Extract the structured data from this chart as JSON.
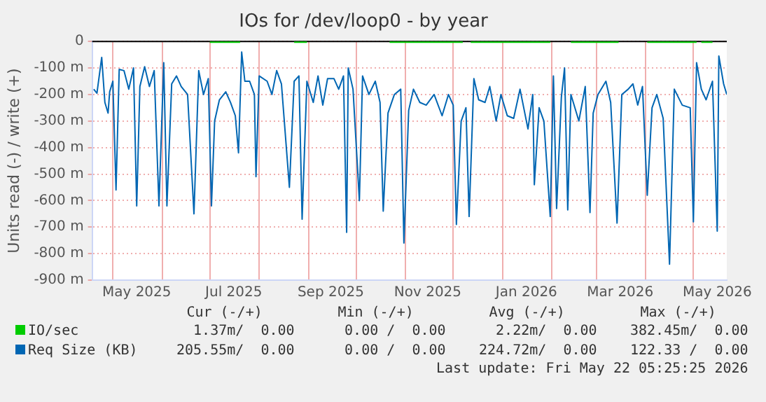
{
  "chart_data": {
    "type": "line",
    "title": "IOs for /dev/loop0 - by year",
    "ylabel": "Units read (-) / write (+)",
    "xlim": [
      "2025-04-18",
      "2026-05-22"
    ],
    "xticks": [
      {
        "value": "2025-05-01",
        "label": null
      },
      {
        "value": "2025-05-16",
        "label": "May 2025"
      },
      {
        "value": "2025-06-01",
        "label": null
      },
      {
        "value": "2025-07-01",
        "label": null
      },
      {
        "value": "2025-07-16",
        "label": "Jul 2025"
      },
      {
        "value": "2025-08-01",
        "label": null
      },
      {
        "value": "2025-09-01",
        "label": null
      },
      {
        "value": "2025-09-15",
        "label": "Sep 2025"
      },
      {
        "value": "2025-10-01",
        "label": null
      },
      {
        "value": "2025-11-01",
        "label": null
      },
      {
        "value": "2025-11-15",
        "label": "Nov 2025"
      },
      {
        "value": "2025-12-01",
        "label": null
      },
      {
        "value": "2026-01-01",
        "label": null
      },
      {
        "value": "2026-01-16",
        "label": "Jan 2026"
      },
      {
        "value": "2026-02-01",
        "label": null
      },
      {
        "value": "2026-03-01",
        "label": null
      },
      {
        "value": "2026-03-16",
        "label": "Mar 2026"
      },
      {
        "value": "2026-04-01",
        "label": null
      },
      {
        "value": "2026-05-01",
        "label": null
      },
      {
        "value": "2026-05-16",
        "label": "May 2026"
      }
    ],
    "ylim": [
      -900,
      0
    ],
    "yticks": [
      0,
      {
        "value": -100,
        "label": "-100 m"
      },
      {
        "value": -200,
        "label": "-200 m"
      },
      {
        "value": -300,
        "label": "-300 m"
      },
      {
        "value": -400,
        "label": "-400 m"
      },
      {
        "value": -500,
        "label": "-500 m"
      },
      {
        "value": -600,
        "label": "-600 m"
      },
      {
        "value": -700,
        "label": "-700 m"
      },
      {
        "value": -800,
        "label": "-800 m"
      },
      {
        "value": -900,
        "label": "-900 m"
      }
    ],
    "grid": true,
    "legend": "bottom",
    "ref_lines": [
      {
        "axis": "y",
        "value": 0,
        "color": "#000000"
      }
    ],
    "series": [
      {
        "name": "Req Size (KB)",
        "color": "#0066b3",
        "x": [
          "2025-04-19",
          "2025-04-21",
          "2025-04-24",
          "2025-04-26",
          "2025-04-28",
          "2025-04-29",
          "2025-05-01",
          "2025-05-03",
          "2025-05-05",
          "2025-05-08",
          "2025-05-11",
          "2025-05-14",
          "2025-05-16",
          "2025-05-18",
          "2025-05-21",
          "2025-05-24",
          "2025-05-27",
          "2025-05-30",
          "2025-06-02",
          "2025-06-04",
          "2025-06-07",
          "2025-06-10",
          "2025-06-13",
          "2025-06-17",
          "2025-06-21",
          "2025-06-24",
          "2025-06-27",
          "2025-06-30",
          "2025-07-02",
          "2025-07-04",
          "2025-07-07",
          "2025-07-11",
          "2025-07-14",
          "2025-07-17",
          "2025-07-19",
          "2025-07-21",
          "2025-07-23",
          "2025-07-26",
          "2025-07-29",
          "2025-07-30",
          "2025-08-01",
          "2025-08-06",
          "2025-08-09",
          "2025-08-12",
          "2025-08-15",
          "2025-08-20",
          "2025-08-23",
          "2025-08-26",
          "2025-08-28",
          "2025-08-31",
          "2025-09-04",
          "2025-09-07",
          "2025-09-10",
          "2025-09-13",
          "2025-09-17",
          "2025-09-20",
          "2025-09-23",
          "2025-09-25",
          "2025-09-26",
          "2025-09-29",
          "2025-10-03",
          "2025-10-05",
          "2025-10-09",
          "2025-10-13",
          "2025-10-16",
          "2025-10-18",
          "2025-10-21",
          "2025-10-25",
          "2025-10-29",
          "2025-10-31",
          "2025-11-03",
          "2025-11-06",
          "2025-11-10",
          "2025-11-14",
          "2025-11-19",
          "2025-11-24",
          "2025-11-28",
          "2025-12-01",
          "2025-12-03",
          "2025-12-06",
          "2025-12-09",
          "2025-12-11",
          "2025-12-14",
          "2025-12-17",
          "2025-12-21",
          "2025-12-24",
          "2025-12-28",
          "2025-12-31",
          "2026-01-04",
          "2026-01-08",
          "2026-01-12",
          "2026-01-17",
          "2026-01-20",
          "2026-01-21",
          "2026-01-24",
          "2026-01-27",
          "2026-01-31",
          "2026-02-02",
          "2026-02-04",
          "2026-02-07",
          "2026-02-09",
          "2026-02-11",
          "2026-02-13",
          "2026-02-18",
          "2026-02-22",
          "2026-02-25",
          "2026-02-27",
          "2026-03-02",
          "2026-03-07",
          "2026-03-10",
          "2026-03-14",
          "2026-03-17",
          "2026-03-21",
          "2026-03-24",
          "2026-03-27",
          "2026-03-30",
          "2026-04-02",
          "2026-04-05",
          "2026-04-08",
          "2026-04-12",
          "2026-04-16",
          "2026-04-19",
          "2026-04-24",
          "2026-04-29",
          "2026-05-01",
          "2026-05-03",
          "2026-05-06",
          "2026-05-09",
          "2026-05-13",
          "2026-05-16",
          "2026-05-17",
          "2026-05-20",
          "2026-05-22"
        ],
        "values": [
          -180,
          -195,
          -60,
          -230,
          -270,
          -190,
          -150,
          -560,
          -105,
          -110,
          -180,
          -100,
          -620,
          -170,
          -95,
          -170,
          -110,
          -620,
          -80,
          -620,
          -160,
          -130,
          -170,
          -200,
          -650,
          -110,
          -200,
          -140,
          -620,
          -300,
          -220,
          -190,
          -230,
          -280,
          -420,
          -40,
          -150,
          -150,
          -200,
          -510,
          -130,
          -150,
          -200,
          -110,
          -160,
          -550,
          -150,
          -130,
          -670,
          -150,
          -230,
          -130,
          -240,
          -140,
          -140,
          -180,
          -130,
          -720,
          -100,
          -180,
          -600,
          -130,
          -200,
          -150,
          -230,
          -640,
          -270,
          -200,
          -180,
          -760,
          -260,
          -180,
          -230,
          -240,
          -200,
          -280,
          -200,
          -240,
          -690,
          -300,
          -250,
          -660,
          -140,
          -220,
          -230,
          -170,
          -300,
          -200,
          -280,
          -290,
          -180,
          -330,
          -200,
          -540,
          -250,
          -300,
          -660,
          -130,
          -630,
          -210,
          -100,
          -635,
          -200,
          -300,
          -170,
          -645,
          -270,
          -200,
          -150,
          -230,
          -685,
          -200,
          -180,
          -160,
          -240,
          -170,
          -580,
          -250,
          -200,
          -290,
          -840,
          -180,
          -240,
          -250,
          -680,
          -80,
          -180,
          -220,
          -150,
          -715,
          -55,
          -160,
          -200
        ]
      },
      {
        "name": "IO/sec",
        "color": "#00cc00",
        "x": [
          "2025-07-01",
          "2025-07-20",
          "2025-07-21",
          "2025-08-23",
          "2025-08-31",
          "2025-09-01",
          "2025-10-22",
          "2025-12-07",
          "2025-12-09",
          "2025-12-12",
          "2026-01-31",
          "2026-02-02",
          "2026-02-13",
          "2026-03-15",
          "2026-03-17",
          "2026-04-02",
          "2026-05-03",
          "2026-05-05",
          "2026-05-06",
          "2026-05-13"
        ],
        "values": [
          0,
          0,
          null,
          0,
          0,
          null,
          0,
          0,
          null,
          0,
          0,
          null,
          0,
          0,
          null,
          0,
          0,
          null,
          0,
          0
        ]
      }
    ],
    "annotations": [
      "Cur (-/+)",
      "Min (-/+)",
      "Avg (-/+)",
      "Max (-/+)",
      "205.55m/  0.00",
      "0.00 /  0.00",
      "224.72m/  0.00",
      "122.33 /  0.00",
      "1.37m/  0.00",
      "0.00 /  0.00",
      "2.22m/  0.00",
      "382.45m/  0.00",
      "Last update: Fri May 22 05:25:25 2026"
    ]
  }
}
